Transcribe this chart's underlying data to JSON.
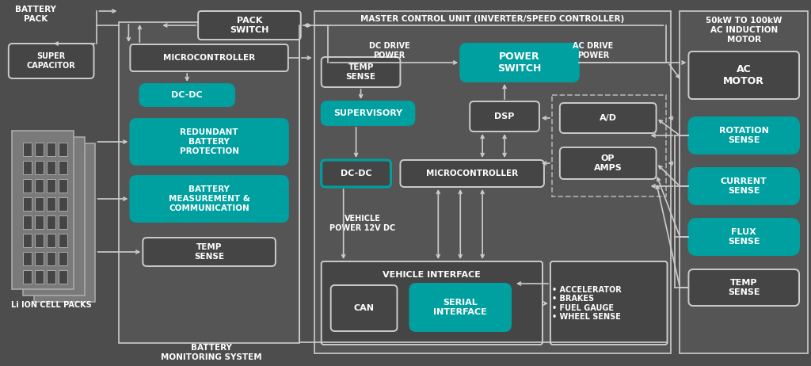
{
  "bg": "#4d4d4d",
  "panel_mid": "#555555",
  "panel_dark": "#484848",
  "teal": "#00a0a0",
  "dark_box": "#454545",
  "outline_light": "#aaaaaa",
  "outline_white": "#cccccc",
  "white": "#ffffff",
  "light": "#cccccc",
  "dashed_color": "#aaaaaa",
  "title_batt_pack": "BATTERY\nPACK",
  "title_super_cap": "SUPER\nCAPACITOR",
  "title_li_ion": "Li ION CELL PACKS",
  "title_bms": "BATTERY\nMONITORING SYSTEM",
  "lbl_pack_switch": "PACK\nSWITCH",
  "lbl_microcontroller_bms": "MICROCONTROLLER",
  "lbl_dcdc_bms": "DC-DC",
  "lbl_redundant": "REDUNDANT\nBATTERY\nPROTECTION",
  "lbl_batt_meas": "BATTERY\nMEASUREMENT &\nCOMMUNICATION",
  "lbl_temp_bms": "TEMP\nSENSE",
  "title_mcu": "MASTER CONTROL UNIT (INVERTER/SPEED CONTROLLER)",
  "lbl_dc_drive": "DC DRIVE\nPOWER",
  "lbl_ac_drive": "AC DRIVE\nPOWER",
  "lbl_temp_mcu": "TEMP\nSENSE",
  "lbl_supervisory": "SUPERVISORY",
  "lbl_dcdc_mcu": "DC-DC",
  "lbl_power_switch": "POWER\nSWITCH",
  "lbl_dsp": "DSP",
  "lbl_micro_mcu": "MICROCONTROLLER",
  "lbl_ad": "A/D",
  "lbl_opamps": "OP\nAMPS",
  "lbl_vehicle_power": "VEHICLE\nPOWER 12V DC",
  "lbl_vehicle_interface": "VEHICLE INTERFACE",
  "lbl_can": "CAN",
  "lbl_serial": "SERIAL\nINTERFACE",
  "lbl_vehicle_inputs": "• ACCELERATOR\n• BRAKES\n• FUEL GAUGE\n• WHEEL SENSE",
  "title_motor": "50kW TO 100kW\nAC INDUCTION\nMOTOR",
  "lbl_ac_motor": "AC\nMOTOR",
  "lbl_rotation": "ROTATION\nSENSE",
  "lbl_current": "CURRENT\nSENSE",
  "lbl_flux": "FLUX\nSENSE",
  "lbl_temp_motor": "TEMP\nSENSE"
}
